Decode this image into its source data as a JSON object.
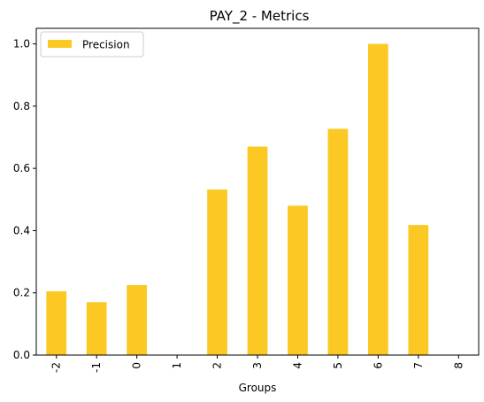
{
  "chart_data": {
    "type": "bar",
    "title": "PAY_2 - Metrics",
    "xlabel": "Groups",
    "ylabel": "",
    "categories": [
      "-2",
      "-1",
      "0",
      "1",
      "2",
      "3",
      "4",
      "5",
      "6",
      "7",
      "8"
    ],
    "series": [
      {
        "name": "Precision",
        "color": "#fcc824",
        "values": [
          0.205,
          0.17,
          0.225,
          0.0,
          0.532,
          0.67,
          0.48,
          0.727,
          1.0,
          0.418,
          0.0
        ]
      }
    ],
    "ylim": [
      0,
      1.05
    ],
    "yticks": [
      "0.0",
      "0.2",
      "0.4",
      "0.6",
      "0.8",
      "1.0"
    ],
    "grid": false,
    "legend_position": "top-left"
  }
}
